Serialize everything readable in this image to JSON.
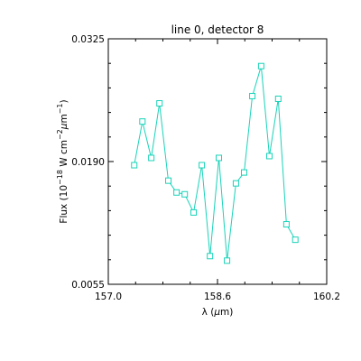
{
  "chart_data": {
    "type": "line",
    "title": "line 0, detector 8",
    "xlabel_prefix": "λ (",
    "xlabel_mu": "μ",
    "xlabel_suffix": "m)",
    "ylabel_lead": "Flux (10",
    "ylabel_exp1": "−18",
    "ylabel_mid": " W cm",
    "ylabel_exp2": "−2",
    "ylabel_mu": "μ",
    "ylabel_m": "m",
    "ylabel_exp3": "−1",
    "ylabel_close": ")",
    "xlim": [
      157.0,
      160.2
    ],
    "ylim": [
      0.0055,
      0.0325
    ],
    "x_ticks": [
      157.0,
      158.6,
      160.2
    ],
    "x_tick_labels": [
      "157.0",
      "158.6",
      "160.2"
    ],
    "y_ticks": [
      0.0055,
      0.019,
      0.0325
    ],
    "y_tick_labels": [
      "0.0055",
      "0.0190",
      "0.0325"
    ],
    "grid": false,
    "marker": "square",
    "color": "#19d3b9",
    "x": [
      157.38,
      157.5,
      157.63,
      157.75,
      157.88,
      158.0,
      158.12,
      158.25,
      158.37,
      158.49,
      158.62,
      158.74,
      158.87,
      158.99,
      159.11,
      159.24,
      159.36,
      159.49,
      159.61,
      159.74
    ],
    "y": [
      0.0186,
      0.0234,
      0.0194,
      0.0254,
      0.0169,
      0.0156,
      0.0154,
      0.0134,
      0.0186,
      0.0086,
      0.0194,
      0.0081,
      0.0166,
      0.0178,
      0.0262,
      0.0295,
      0.0196,
      0.0259,
      0.0121,
      0.0104
    ]
  }
}
